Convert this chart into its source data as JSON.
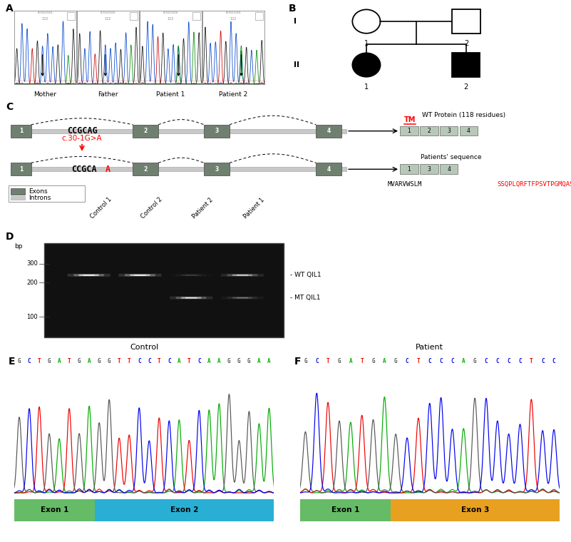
{
  "panel_labels": [
    "A",
    "B",
    "C",
    "D",
    "E",
    "F"
  ],
  "chromatogram_labels": [
    "Mother",
    "Father",
    "Patient 1",
    "Patient 2"
  ],
  "pedigree_gen": [
    "I",
    "II"
  ],
  "exon_label_wt": "WT Protein (118 residues)",
  "tm_label": "TM",
  "patients_seq_label": "Patients' sequence",
  "mutation_label": "c.30-1G>A",
  "wt_seq": "CCGCAG",
  "mut_seq": "CCGCAA",
  "protein_wt": "MVARVWSLM",
  "protein_mut": "SSQPLQRFTFPSVTPGMQAS*",
  "gel_labels": [
    "Control 1",
    "Control 2",
    "Patient 2",
    "Patient 1"
  ],
  "gel_bands": [
    "WT QIL1",
    "MT QIL1"
  ],
  "bp_labels": [
    "300",
    "200",
    "100"
  ],
  "control_seq": "GCTGATGAGGTTCCTCATCAAGGGAA",
  "patient_seq": "GCTGATGAGCTCCCAGCCCCTCC",
  "exon1_color": "#66bb66",
  "exon2_color": "#29afd4",
  "exon3_color": "#e8a020",
  "exon_dark_color": "#6a8a6a",
  "intron_color": "#c8c8c8",
  "bg_color": "white"
}
